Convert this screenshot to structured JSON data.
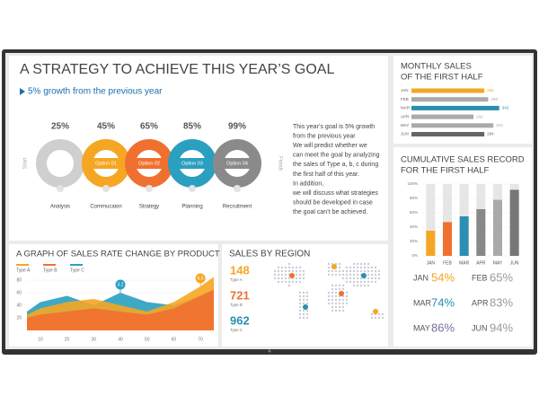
{
  "strategy": {
    "title": "A STRATEGY TO ACHIEVE THIS YEAR’S GOAL",
    "subtitle": "5% growth from the previous year",
    "start": "Start",
    "finish": "Finish",
    "steps": [
      {
        "percent": "25%",
        "label": "Analysis",
        "color": "#cfcfcf"
      },
      {
        "percent": "45%",
        "label": "Commucaion",
        "option": "Option 01",
        "color": "#f5a623"
      },
      {
        "percent": "65%",
        "label": "Strategy",
        "option": "Option 02",
        "color": "#f07030"
      },
      {
        "percent": "85%",
        "label": "Planning",
        "option": "Option 03",
        "color": "#2a9fc0"
      },
      {
        "percent": "99%",
        "label": "Recruitment",
        "option": "Option 04",
        "color": "#8a8a8a"
      }
    ],
    "paragraph": [
      "This year’s goal is 5% growth",
      "from the previous year",
      "We will predict whether we",
      "can meet the goal by analyzing",
      "the sales of Type a, b, c during",
      "the first half of this year.",
      "In addition,",
      "we will discuss what strategies",
      "should be developed in case",
      "the goal can’t be achieved."
    ]
  },
  "region": {
    "title": "SALES BY REGION",
    "items": [
      {
        "value": "148",
        "label": "Type A",
        "color": "#f5a623"
      },
      {
        "value": "721",
        "label": "Type B",
        "color": "#f07030"
      },
      {
        "value": "962",
        "label": "Type C",
        "color": "#2a8fb0"
      }
    ]
  },
  "stats": [
    {
      "month": "JAN",
      "value": "54%",
      "color": "#f5a623"
    },
    {
      "month": "FEB",
      "value": "65%",
      "color": "#9a9a9a"
    },
    {
      "month": "MAR",
      "value": "74%",
      "color": "#2a8fb0"
    },
    {
      "month": "APR",
      "value": "83%",
      "color": "#9a9a9a"
    },
    {
      "month": "MAY",
      "value": "86%",
      "color": "#7a6f9b"
    },
    {
      "month": "JUN",
      "value": "94%",
      "color": "#9a9a9a"
    }
  ],
  "chart_data": [
    {
      "type": "hbar",
      "title": [
        "MONTHLY SALES",
        "OF THE FIRST HALF"
      ],
      "categories": [
        "JAN",
        "FEB",
        "MAR",
        "APR",
        "MAY",
        "JUN"
      ],
      "values": [
        284,
        299,
        342,
        242,
        319,
        284
      ],
      "colors": [
        "#f5a623",
        "#aaaaaa",
        "#2a8fb0",
        "#aaaaaa",
        "#aaaaaa",
        "#666666"
      ],
      "xlim": [
        0,
        350
      ]
    },
    {
      "type": "bar",
      "title": [
        "CUMULATIVE SALES RECORD",
        "FOR THE FIRST HALF"
      ],
      "categories": [
        "JAN",
        "FEB",
        "MAR",
        "APR",
        "MAY",
        "JUN"
      ],
      "values": [
        35,
        47,
        55,
        65,
        78,
        92
      ],
      "colors": [
        "#f5a623",
        "#f07030",
        "#2a8fb0",
        "#888888",
        "#aaaaaa",
        "#777777"
      ],
      "ylim": [
        0,
        100
      ],
      "yticks": [
        {
          "value": 0,
          "label": "0%"
        },
        {
          "value": 20,
          "label": "20%"
        },
        {
          "value": 40,
          "label": "40%"
        },
        {
          "value": 60,
          "label": "60%"
        },
        {
          "value": 80,
          "label": "80%"
        },
        {
          "value": 100,
          "label": "100%"
        }
      ]
    },
    {
      "type": "area",
      "title": "A GRAPH OF SALES RATE CHANGE BY PRODUCT",
      "x": [
        5,
        10,
        20,
        30,
        40,
        50,
        60,
        70,
        75
      ],
      "series": [
        {
          "name": "Type C",
          "color": "#2a9fc0",
          "values": [
            30,
            45,
            55,
            40,
            60,
            45,
            40,
            55,
            60
          ]
        },
        {
          "name": "Type A",
          "color": "#f5a623",
          "values": [
            25,
            35,
            45,
            50,
            40,
            30,
            45,
            70,
            85
          ]
        },
        {
          "name": "Type B",
          "color": "#f07030",
          "values": [
            20,
            25,
            30,
            35,
            30,
            25,
            35,
            55,
            65
          ]
        }
      ],
      "legend_order": [
        1,
        2,
        0
      ],
      "xlim": [
        5,
        75
      ],
      "ylim": [
        0,
        90
      ],
      "xticks": [
        10,
        20,
        30,
        40,
        50,
        60,
        70
      ],
      "yticks": [
        20,
        40,
        60,
        80
      ],
      "annotations": [
        {
          "x": 40,
          "text": "3.2",
          "color": "#2a9fc0"
        },
        {
          "x": 70,
          "text": "6.5",
          "color": "#f5a623"
        }
      ]
    }
  ]
}
